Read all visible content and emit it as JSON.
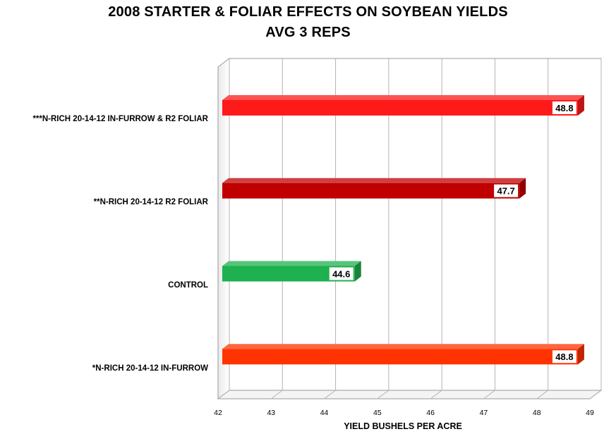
{
  "chart_data": {
    "type": "bar",
    "orientation": "horizontal",
    "title": "2008 STARTER & FOLIAR EFFECTS ON SOYBEAN YIELDS",
    "subtitle": "AVG 3 REPS",
    "xlabel": "YIELD BUSHELS PER ACRE",
    "ylabel": "",
    "xlim": [
      42,
      49
    ],
    "xticks": [
      "42",
      "43",
      "44",
      "45",
      "46",
      "47",
      "48",
      "49"
    ],
    "grid": true,
    "categories": [
      "***N-RICH 20-14-12 IN-FURROW & R2 FOLIAR",
      "**N-RICH 20-14-12 R2 FOLIAR",
      "CONTROL",
      "*N-RICH 20-14-12 IN-FURROW"
    ],
    "values": [
      48.8,
      47.7,
      44.6,
      48.8
    ],
    "data_labels": [
      "48.8",
      "47.7",
      "44.6",
      "48.8"
    ],
    "colors": [
      "#ff1a1a",
      "#c00000",
      "#1fb04f",
      "#ff3300"
    ]
  }
}
